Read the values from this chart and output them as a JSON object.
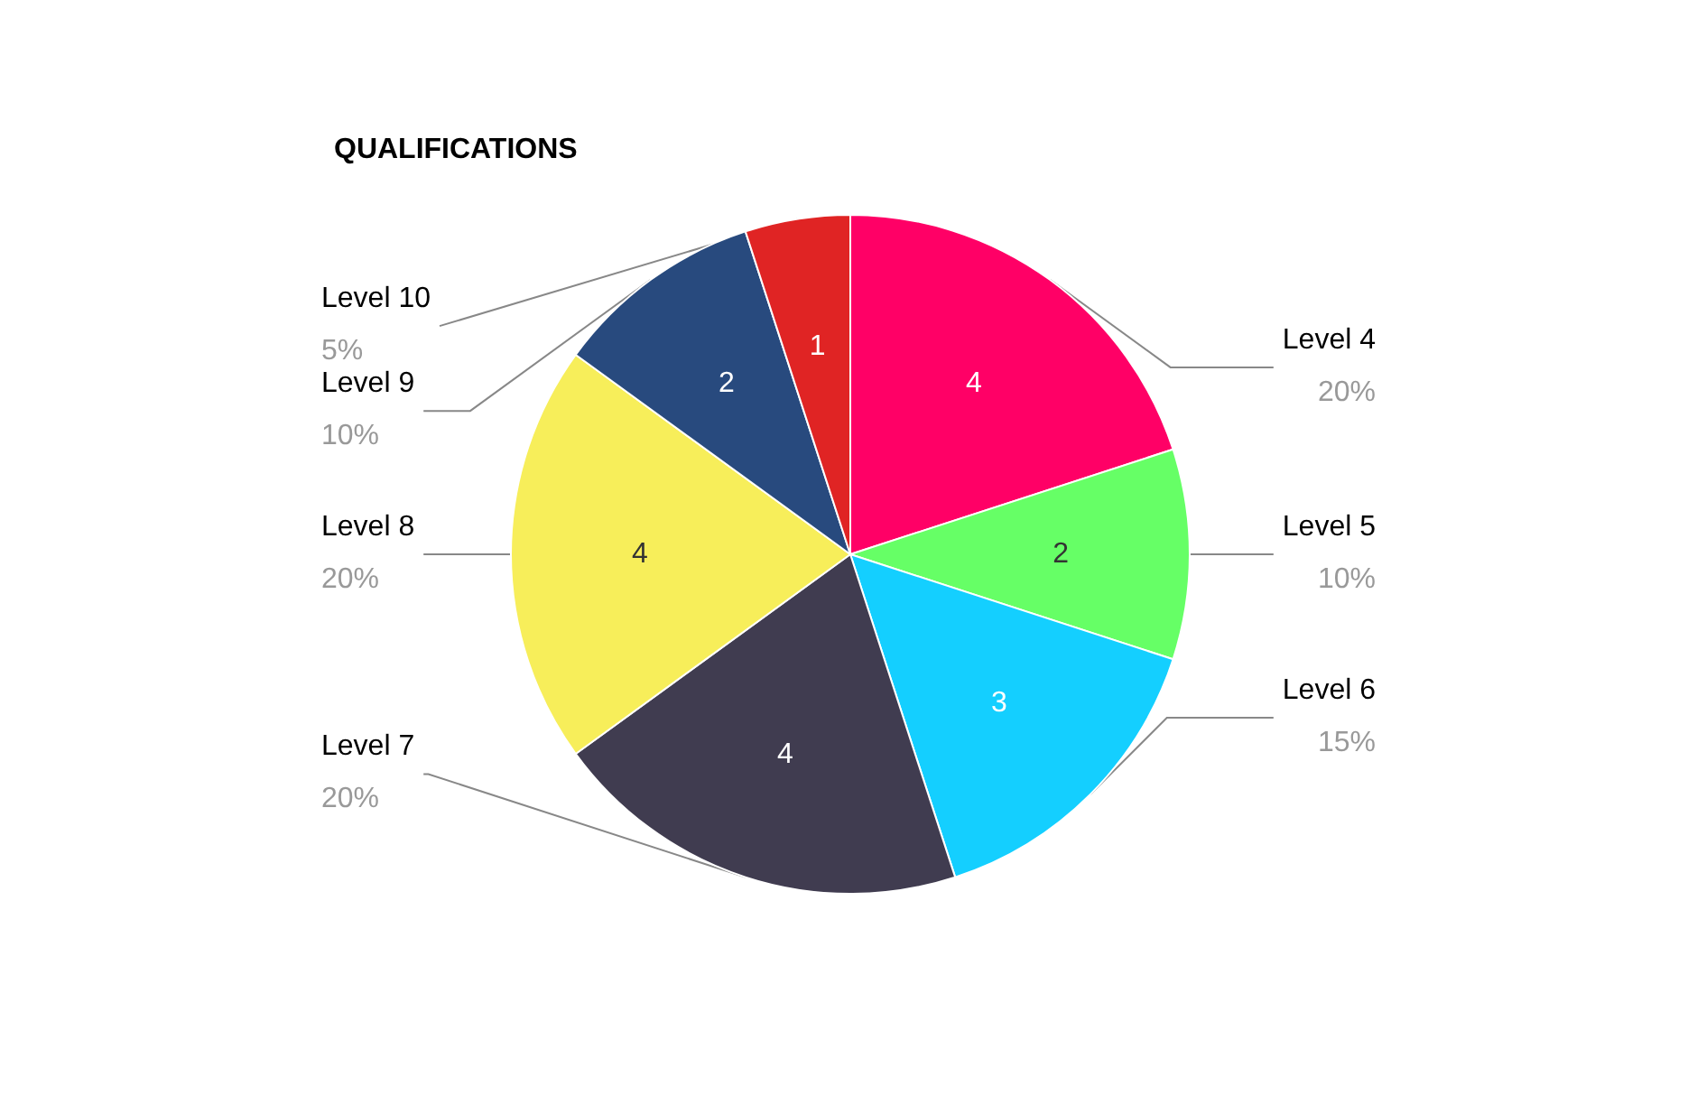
{
  "chart_data": {
    "type": "pie",
    "title": "QUALIFICATIONS",
    "categories": [
      "Level 4",
      "Level 5",
      "Level 6",
      "Level 7",
      "Level 8",
      "Level 9",
      "Level 10"
    ],
    "values": [
      20,
      10,
      15,
      20,
      20,
      10,
      5
    ],
    "colors": [
      "#ff0066",
      "#66ff66",
      "#14cfff",
      "#403c50",
      "#f7ee5a",
      "#284a7e",
      "#e02424"
    ],
    "value_labels": [
      "20%",
      "10%",
      "15%",
      "20%",
      "20%",
      "10%",
      "5%"
    ],
    "annotations": [
      "4",
      "2",
      "3",
      "4",
      "4",
      "2",
      "1"
    ],
    "legend": false
  }
}
